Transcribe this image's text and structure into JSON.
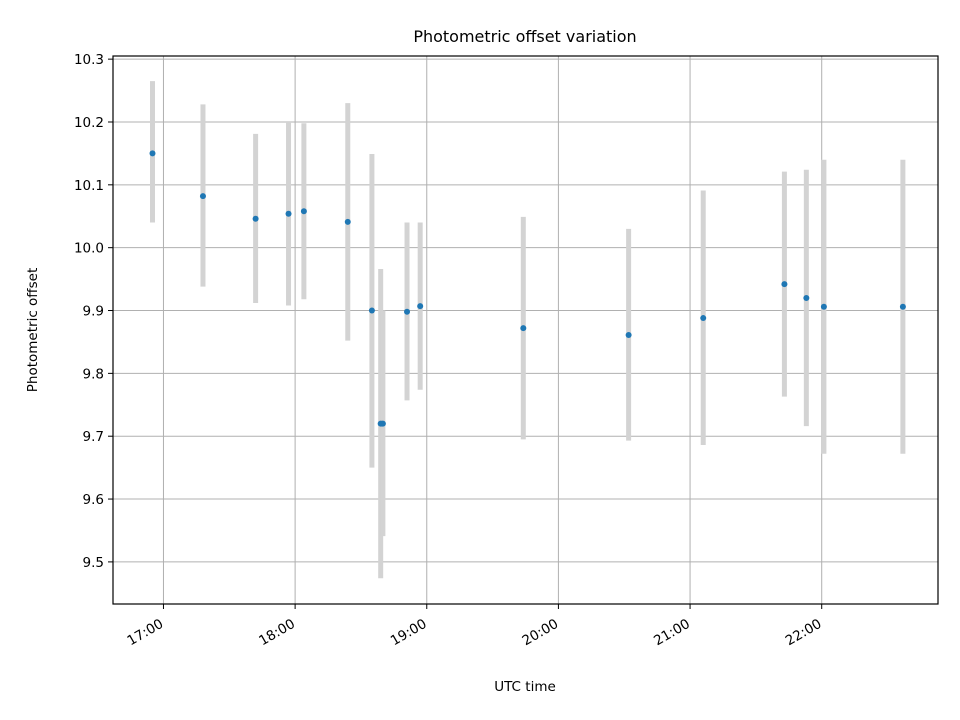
{
  "chart_data": {
    "type": "scatter",
    "title": "Photometric offset variation",
    "xlabel": "UTC time",
    "ylabel": "Photometric offset",
    "x_axis_kind": "time",
    "xlim": [
      "16:37",
      "22:53"
    ],
    "ylim": [
      9.433,
      10.305
    ],
    "x_ticks": [
      "17:00",
      "18:00",
      "19:00",
      "20:00",
      "21:00",
      "22:00"
    ],
    "y_ticks": [
      "9.5",
      "9.6",
      "9.7",
      "9.8",
      "9.9",
      "10.0",
      "10.1",
      "10.2",
      "10.3"
    ],
    "grid": true,
    "legend": "none",
    "series": [
      {
        "marker_color": "#1f77b4",
        "errorbar_color": "#d3d3d3",
        "points": [
          {
            "x": "16:55",
            "y": 10.15,
            "err_low": 10.04,
            "err_high": 10.265
          },
          {
            "x": "17:18",
            "y": 10.082,
            "err_low": 9.938,
            "err_high": 10.228
          },
          {
            "x": "17:42",
            "y": 10.046,
            "err_low": 9.912,
            "err_high": 10.181
          },
          {
            "x": "17:57",
            "y": 10.054,
            "err_low": 9.908,
            "err_high": 10.2
          },
          {
            "x": "18:04",
            "y": 10.058,
            "err_low": 9.918,
            "err_high": 10.198
          },
          {
            "x": "18:24",
            "y": 10.041,
            "err_low": 9.852,
            "err_high": 10.23
          },
          {
            "x": "18:35",
            "y": 9.9,
            "err_low": 9.65,
            "err_high": 10.149
          },
          {
            "x": "18:39",
            "y": 9.72,
            "err_low": 9.474,
            "err_high": 9.966
          },
          {
            "x": "18:40",
            "y": 9.72,
            "err_low": 9.541,
            "err_high": 9.9
          },
          {
            "x": "18:51",
            "y": 9.898,
            "err_low": 9.757,
            "err_high": 10.04
          },
          {
            "x": "18:57",
            "y": 9.907,
            "err_low": 9.774,
            "err_high": 10.04
          },
          {
            "x": "19:44",
            "y": 9.872,
            "err_low": 9.695,
            "err_high": 10.049
          },
          {
            "x": "20:32",
            "y": 9.861,
            "err_low": 9.693,
            "err_high": 10.03
          },
          {
            "x": "21:06",
            "y": 9.888,
            "err_low": 9.686,
            "err_high": 10.091
          },
          {
            "x": "21:43",
            "y": 9.942,
            "err_low": 9.763,
            "err_high": 10.121
          },
          {
            "x": "21:53",
            "y": 9.92,
            "err_low": 9.716,
            "err_high": 10.124
          },
          {
            "x": "22:01",
            "y": 9.906,
            "err_low": 9.672,
            "err_high": 10.14
          },
          {
            "x": "22:37",
            "y": 9.906,
            "err_low": 9.672,
            "err_high": 10.14
          }
        ]
      }
    ]
  }
}
